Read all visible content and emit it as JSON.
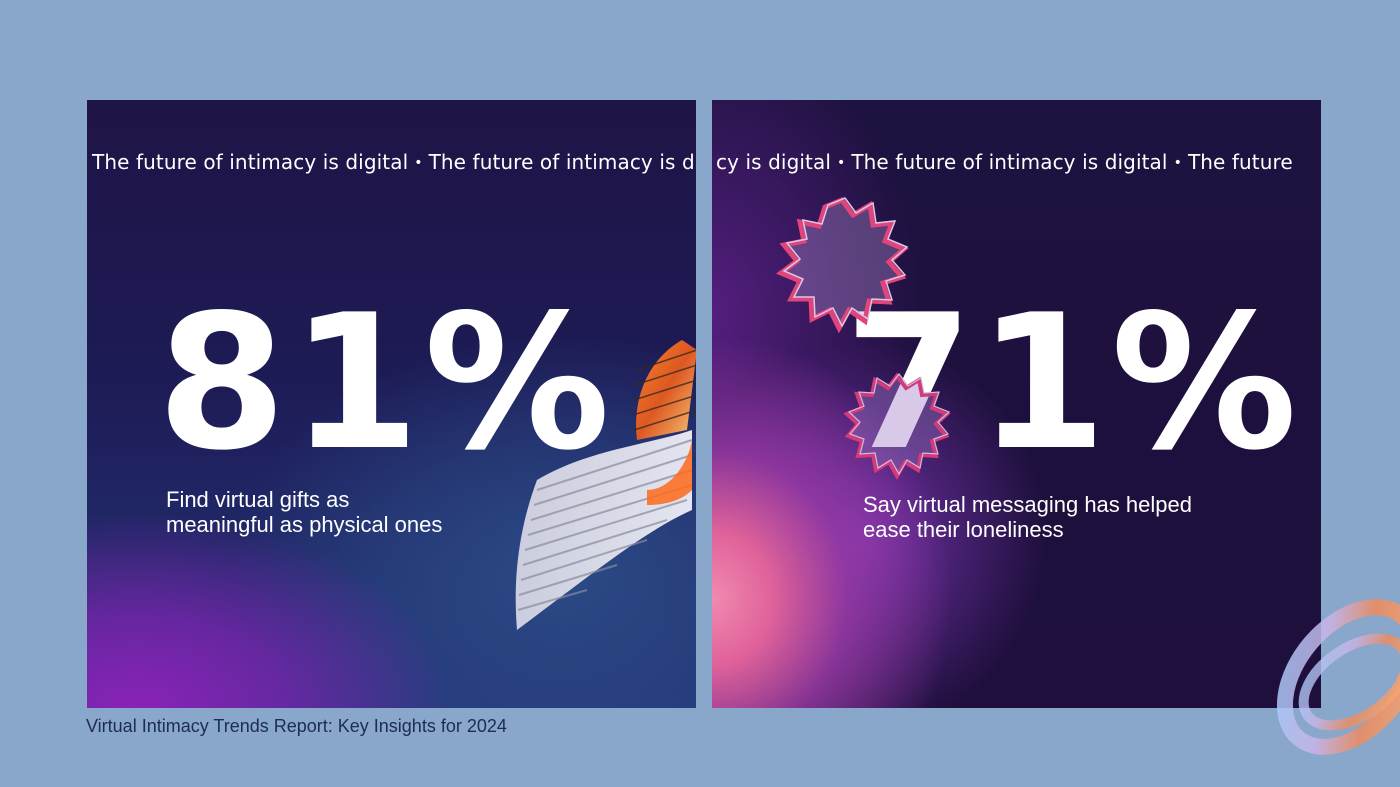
{
  "ticker_text": "The future of intimacy is digital",
  "ticker_separator": "•",
  "ticker_right_lead": "cy is digital",
  "ticker_right_tail": "The future",
  "stat_left": {
    "value": "81%",
    "description": "Find virtual gifts as meaningful as physical ones"
  },
  "stat_right": {
    "value": "71%",
    "description": "Say virtual messaging has helped ease their loneliness"
  },
  "caption": "Virtual Intimacy Trends Report: Key Insights for 2024",
  "colors": {
    "page_background": "#89a6cb",
    "card_dark": "#1e1240",
    "accent_purple": "#8a22b8",
    "accent_pink": "#e0629a",
    "caption_text": "#1d2b5a"
  }
}
